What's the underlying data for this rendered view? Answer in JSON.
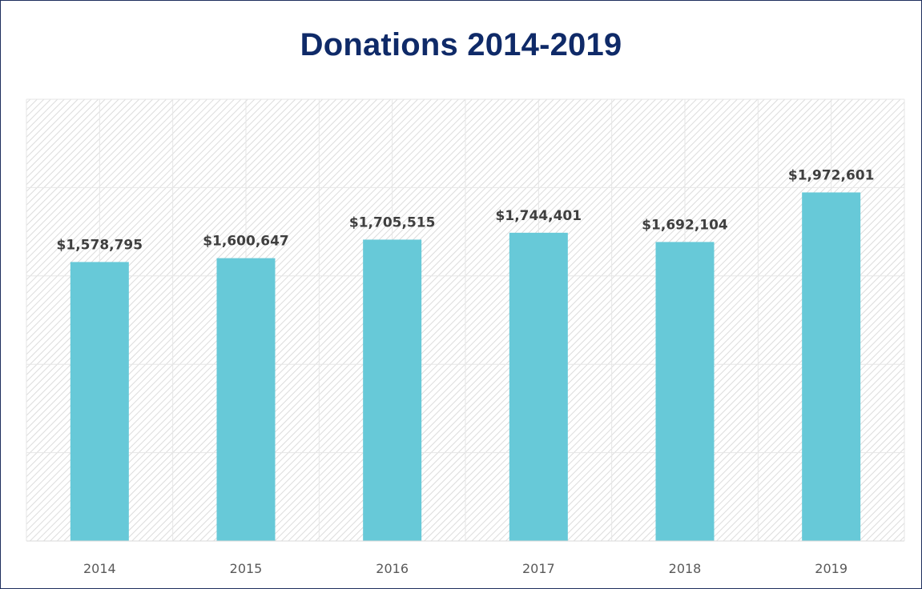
{
  "chart_data": {
    "type": "bar",
    "title": "Donations 2014-2019",
    "categories": [
      "2014",
      "2015",
      "2016",
      "2017",
      "2018",
      "2019"
    ],
    "values": [
      1578795,
      1600647,
      1705515,
      1744401,
      1692104,
      1972601
    ],
    "data_labels": [
      "$1,578,795",
      "$1,600,647",
      "$1,705,515",
      "$1,744,401",
      "$1,692,104",
      "$1,972,601"
    ],
    "ylim": [
      0,
      2500000
    ],
    "grid": true,
    "bar_color": "#67c9d8",
    "title_color": "#0f2a68"
  }
}
